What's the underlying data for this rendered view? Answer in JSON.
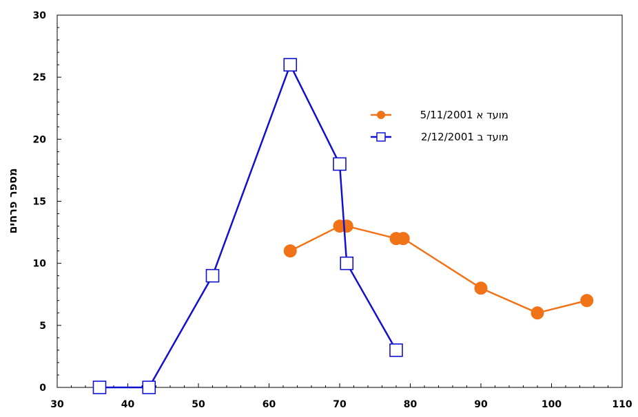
{
  "chart_data": {
    "type": "line",
    "xlim": [
      30,
      110
    ],
    "ylim": [
      0,
      30
    ],
    "xticks": [
      30,
      40,
      50,
      60,
      70,
      80,
      90,
      100,
      110
    ],
    "yticks": [
      0,
      5,
      10,
      15,
      20,
      25,
      30
    ],
    "xtick_labels": [
      "30",
      "40",
      "50",
      "60",
      "70",
      "80",
      "90",
      "100",
      "110"
    ],
    "ytick_labels": [
      "0",
      "5",
      "10",
      "15",
      "20",
      "25",
      "30"
    ],
    "xlabel": "",
    "ylabel": "מספר פרחים",
    "grid": false,
    "legend_position": "upper-right",
    "series": [
      {
        "name": "מועד א 5/11/2001",
        "color": "#F07318",
        "marker": "filled-circle",
        "x": [
          63,
          70,
          71,
          78,
          79,
          90,
          98,
          105
        ],
        "y": [
          11,
          13,
          13,
          12,
          12,
          8,
          6,
          7
        ]
      },
      {
        "name": "מועד ב 2/12/2001",
        "color": "#1010D0",
        "marker": "open-square",
        "x": [
          36,
          43,
          52,
          63,
          70,
          71,
          78
        ],
        "y": [
          0,
          0,
          9,
          26,
          18,
          10,
          3
        ]
      }
    ]
  }
}
